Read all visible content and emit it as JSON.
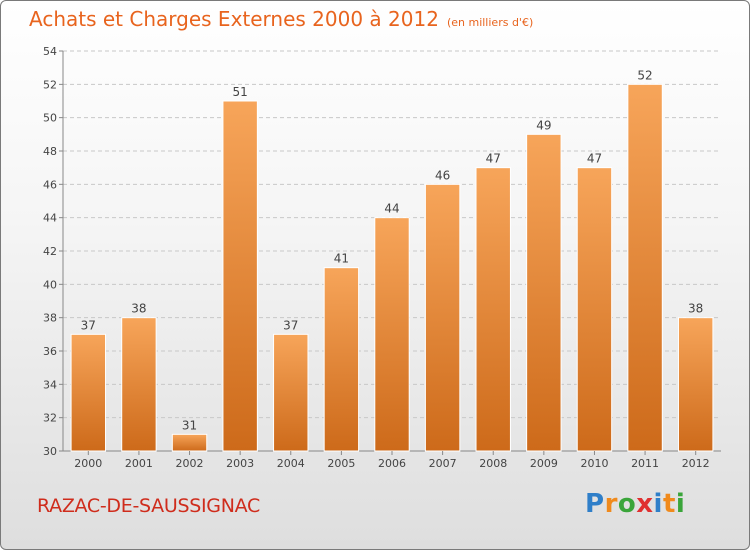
{
  "title": "Achats et Charges Externes 2000 à 2012",
  "subtitle": "(en milliers d'€)",
  "location": "RAZAC-DE-SAUSSIGNAC",
  "logo": {
    "letters": [
      "P",
      "r",
      "o",
      "x",
      "i",
      "t",
      "i"
    ],
    "colors": [
      "#2f7fc9",
      "#f08a1c",
      "#3aa53a",
      "#e03030",
      "#2f7fc9",
      "#f08a1c",
      "#3aa53a"
    ]
  },
  "colors": {
    "bar_light": "#f7a55a",
    "bar_dark": "#cd6a1a",
    "text": "#e8641e",
    "location": "#cf2c1c"
  },
  "chart_data": {
    "type": "bar",
    "categories": [
      "2000",
      "2001",
      "2002",
      "2003",
      "2004",
      "2005",
      "2006",
      "2007",
      "2008",
      "2009",
      "2010",
      "2011",
      "2012"
    ],
    "values": [
      37,
      38,
      31,
      51,
      37,
      41,
      44,
      46,
      47,
      49,
      47,
      52,
      38
    ],
    "ylim": [
      30,
      54
    ],
    "yticks": [
      30,
      32,
      34,
      36,
      38,
      40,
      42,
      44,
      46,
      48,
      50,
      52,
      54
    ],
    "grid": true,
    "legend": "none"
  }
}
